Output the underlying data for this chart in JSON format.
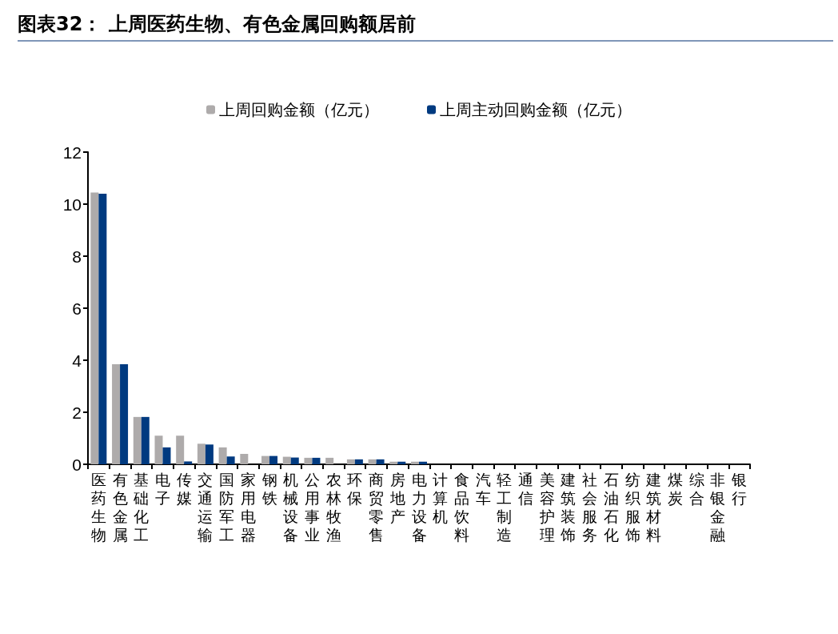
{
  "chart_data": {
    "type": "bar",
    "title": "图表32： 上周医药生物、有色金属回购额居前",
    "categories": [
      "医药生物",
      "有色金属",
      "基础化工",
      "电子",
      "传媒",
      "交通运输",
      "国防军工",
      "家用电器",
      "钢铁",
      "机械设备",
      "公用事业",
      "农林牧渔",
      "环保",
      "商贸零售",
      "房地产",
      "电力设备",
      "计算机",
      "食品饮料",
      "汽车",
      "轻工制造",
      "通信",
      "美容护理",
      "建筑装饰",
      "社会服务",
      "石油石化",
      "纺织服饰",
      "建筑材料",
      "煤炭",
      "综合",
      "非银金融",
      "银行"
    ],
    "series": [
      {
        "name": "上周回购金额（亿元）",
        "color": "#aeabab",
        "values": [
          10.45,
          3.85,
          1.82,
          1.1,
          1.1,
          0.79,
          0.65,
          0.4,
          0.32,
          0.29,
          0.25,
          0.25,
          0.19,
          0.19,
          0.1,
          0.1,
          0,
          0,
          0,
          0,
          0,
          0,
          0,
          0,
          0,
          0,
          0,
          0,
          0,
          0,
          0
        ]
      },
      {
        "name": "上周主动回购金额（亿元）",
        "color": "#003a80",
        "values": [
          10.4,
          3.85,
          1.82,
          0.65,
          0.11,
          0.76,
          0.3,
          0,
          0.32,
          0.26,
          0.25,
          0,
          0.19,
          0.19,
          0.1,
          0.1,
          0,
          0,
          0,
          0,
          0,
          0,
          0,
          0,
          0,
          0,
          0,
          0,
          0,
          0,
          0
        ]
      }
    ],
    "ylim": [
      0,
      12
    ],
    "yticks": [
      0,
      2,
      4,
      6,
      8,
      10,
      12
    ],
    "grid": false,
    "legend": "top"
  }
}
